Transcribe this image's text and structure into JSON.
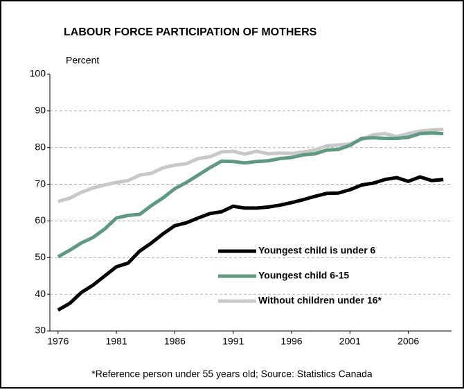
{
  "chart_data": {
    "type": "line",
    "title": "LABOUR FORCE PARTICIPATION OF MOTHERS",
    "y_label": "Percent",
    "footnote": "*Reference person under 55 years old; Source: Statistics Canada",
    "x": [
      1976,
      1977,
      1978,
      1979,
      1980,
      1981,
      1982,
      1983,
      1984,
      1985,
      1986,
      1987,
      1988,
      1989,
      1990,
      1991,
      1992,
      1993,
      1994,
      1995,
      1996,
      1997,
      1998,
      1999,
      2000,
      2001,
      2002,
      2003,
      2004,
      2005,
      2006,
      2007,
      2008,
      2009
    ],
    "series": [
      {
        "name": "Youngest child is under 6",
        "color": "#000000",
        "values": [
          35.7,
          37.5,
          40.5,
          42.5,
          45,
          47.5,
          48.5,
          51.8,
          54,
          56.5,
          58.7,
          59.5,
          60.8,
          62,
          62.5,
          64,
          63.5,
          63.5,
          63.8,
          64.3,
          65,
          65.8,
          66.7,
          67.5,
          67.6,
          68.5,
          69.8,
          70.3,
          71.3,
          71.8,
          70.8,
          72,
          71,
          71.3
        ]
      },
      {
        "name": "Youngest child 6-15",
        "color": "#5f9a80",
        "values": [
          50.2,
          52,
          54,
          55.5,
          57.8,
          60.8,
          61.5,
          61.8,
          64.2,
          66.3,
          68.8,
          70.5,
          72.5,
          74.5,
          76.3,
          76.2,
          75.8,
          76.2,
          76.4,
          77,
          77.3,
          78,
          78.3,
          79.3,
          79.5,
          80.6,
          82.5,
          82.7,
          82.5,
          82.5,
          82.8,
          83.8,
          84,
          83.8
        ]
      },
      {
        "name": "Without children under 16*",
        "color": "#c8c8c8",
        "values": [
          65.3,
          66.2,
          67.8,
          69,
          69.8,
          70.5,
          71,
          72.5,
          73,
          74.5,
          75.2,
          75.6,
          77,
          77.5,
          78.8,
          79,
          78.2,
          79,
          78.3,
          78.5,
          78.4,
          78.8,
          79.3,
          80.5,
          80.7,
          81,
          82.2,
          83.5,
          83.8,
          83,
          83.8,
          84.5,
          84.8,
          85
        ]
      }
    ],
    "xlim": [
      1975.3,
      2009.7
    ],
    "xticks": [
      1976,
      1981,
      1986,
      1991,
      1996,
      2001,
      2006
    ],
    "ylim": [
      30,
      100
    ],
    "yticks": [
      30,
      40,
      50,
      60,
      70,
      80,
      90,
      100
    ],
    "grid": true
  }
}
